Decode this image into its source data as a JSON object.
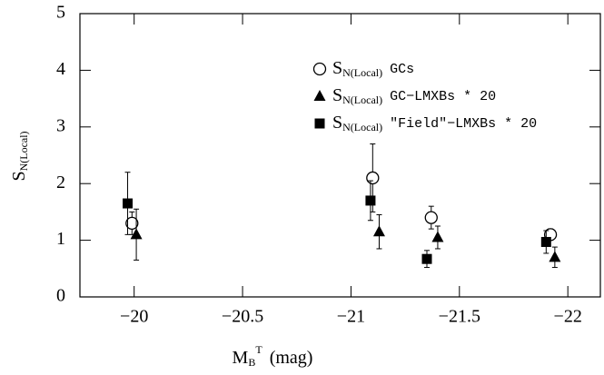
{
  "chart_data": {
    "type": "scatter",
    "xlabel": {
      "main": "M",
      "sub": "B",
      "sup": "T",
      "unit": "(mag)"
    },
    "ylabel": {
      "main": "S",
      "sub": "N(Local)"
    },
    "legend_prefix": {
      "main": "S",
      "sub": "N(Local)"
    },
    "xlim": [
      -19.75,
      -22.15
    ],
    "ylim": [
      0,
      5
    ],
    "xticks": [
      {
        "value": -20,
        "label": "−20"
      },
      {
        "value": -20.5,
        "label": "−20.5"
      },
      {
        "value": -21,
        "label": "−21"
      },
      {
        "value": -21.5,
        "label": "−21.5"
      },
      {
        "value": -22,
        "label": "−22"
      }
    ],
    "yticks": [
      0,
      1,
      2,
      3,
      4,
      5
    ],
    "legend": "upper right",
    "series": [
      {
        "name": "GCs",
        "marker": "circle",
        "color": "#000000",
        "x": [
          -19.99,
          -21.1,
          -21.37,
          -21.92
        ],
        "values": [
          1.3,
          2.1,
          1.4,
          1.1
        ],
        "errors": [
          0.2,
          0.6,
          0.2,
          0.1
        ]
      },
      {
        "name": "GC−LMXBs * 20",
        "marker": "triangle",
        "color": "#000000",
        "x": [
          -20.01,
          -21.13,
          -21.4,
          -21.94
        ],
        "values": [
          1.1,
          1.15,
          1.05,
          0.7
        ],
        "errors": [
          0.45,
          0.3,
          0.2,
          0.18
        ]
      },
      {
        "name": "\"Field\"−LMXBs * 20",
        "marker": "square",
        "color": "#000000",
        "x": [
          -19.97,
          -21.09,
          -21.35,
          -21.9
        ],
        "values": [
          1.65,
          1.7,
          0.67,
          0.97
        ],
        "errors": [
          0.55,
          0.35,
          0.15,
          0.2
        ]
      }
    ]
  }
}
